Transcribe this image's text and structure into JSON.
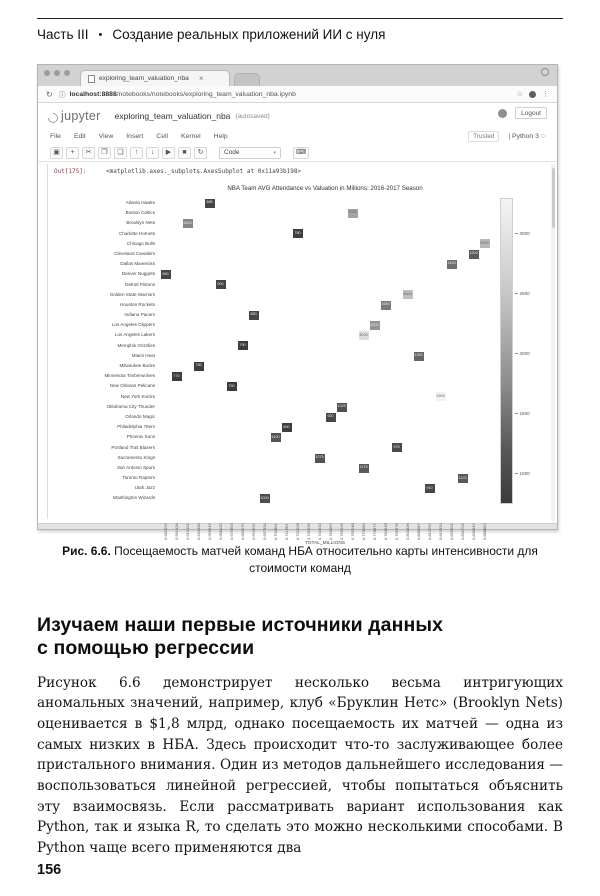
{
  "running_head": {
    "part": "Часть III",
    "bullet": "•",
    "title": "Создание реальных приложений ИИ с нуля"
  },
  "browser": {
    "tab_title": "exploring_team_valuation_nba",
    "tab_close": "×",
    "reload_icon": "↻",
    "info_icon": "ⓘ",
    "url_host": "localhost:8888",
    "url_path": "/notebooks/notebooks/exploring_team_valuation_nba.ipynb",
    "star_icon": "☆",
    "menu_icon": "⋮"
  },
  "jupyter": {
    "logo_word": "jupyter",
    "notebook_title": "exploring_team_valuation_nba",
    "autosave_status": "(autosaved)",
    "logout_label": "Logout",
    "menu_items": [
      "File",
      "Edit",
      "View",
      "Insert",
      "Cell",
      "Kernel",
      "Help"
    ],
    "trusted_label": "Trusted",
    "kernel_label": "| Python 3",
    "kernel_idle_icon": "○",
    "toolbar_icons": [
      {
        "name": "save-icon",
        "glyph": "▣"
      },
      {
        "name": "add-cell-icon",
        "glyph": "+"
      },
      {
        "name": "cut-cell-icon",
        "glyph": "✂"
      },
      {
        "name": "copy-cell-icon",
        "glyph": "❐"
      },
      {
        "name": "paste-cell-icon",
        "glyph": "❏"
      },
      {
        "name": "move-up-icon",
        "glyph": "↑"
      },
      {
        "name": "move-down-icon",
        "glyph": "↓"
      },
      {
        "name": "run-cell-icon",
        "glyph": "▶"
      },
      {
        "name": "stop-kernel-icon",
        "glyph": "■"
      },
      {
        "name": "restart-kernel-icon",
        "glyph": "↻"
      }
    ],
    "cell_type_selected": "Code",
    "select_caret": "▾",
    "keyboard_icon": "⌨",
    "output_prompt": "Out[175]:",
    "output_repr": "<matplotlib.axes._subplots.AxesSubplot at 0x11a93b198>"
  },
  "chart_data": {
    "type": "heatmap",
    "title": "NBA Team AVG Attendance vs Valuation in Millions:  2016-2017 Season",
    "xlabel": "TOTAL_MILLIONS",
    "legend_position": "right-colorbar",
    "grid": false,
    "x_ticks": [
      "0.582029",
      "0.591428",
      "0.612101",
      "0.644400",
      "0.656916",
      "0.668132",
      "0.675893",
      "0.683270",
      "0.692632",
      "0.697934",
      "0.703861",
      "0.711661",
      "0.721928",
      "0.735335",
      "0.741632",
      "0.750362",
      "0.756126",
      "0.762248",
      "0.770580",
      "0.778877",
      "0.784618",
      "0.796376",
      "0.803436",
      "0.808087",
      "0.812292",
      "0.815320",
      "0.825901",
      "0.831702",
      "0.843042",
      "0.888882"
    ],
    "teams": [
      {
        "name": "Atlanta Hawks",
        "col": 4,
        "value": 885
      },
      {
        "name": "Boston Celtics",
        "col": 17,
        "value": 2200
      },
      {
        "name": "Brooklyn Nets",
        "col": 2,
        "value": 1800
      },
      {
        "name": "Charlotte Hornets",
        "col": 12,
        "value": 780
      },
      {
        "name": "Chicago Bulls",
        "col": 29,
        "value": 2500
      },
      {
        "name": "Cleveland Cavaliers",
        "col": 28,
        "value": 1200
      },
      {
        "name": "Dallas Mavericks",
        "col": 26,
        "value": 1450
      },
      {
        "name": "Denver Nuggets",
        "col": 0,
        "value": 890
      },
      {
        "name": "Detroit Pistons",
        "col": 5,
        "value": 900
      },
      {
        "name": "Golden State Warriors",
        "col": 22,
        "value": 2600
      },
      {
        "name": "Houston Rockets",
        "col": 20,
        "value": 1650
      },
      {
        "name": "Indiana Pacers",
        "col": 8,
        "value": 880
      },
      {
        "name": "Los Angeles Clippers",
        "col": 19,
        "value": 2000
      },
      {
        "name": "Los Angeles Lakers",
        "col": 18,
        "value": 3000
      },
      {
        "name": "Memphis Grizzlies",
        "col": 7,
        "value": 790
      },
      {
        "name": "Miami Heat",
        "col": 23,
        "value": 1350
      },
      {
        "name": "Milwaukee Bucks",
        "col": 3,
        "value": 785
      },
      {
        "name": "Minnesota Timberwolves",
        "col": 1,
        "value": 770
      },
      {
        "name": "New Orleans Pelicans",
        "col": 6,
        "value": 750
      },
      {
        "name": "New York Knicks",
        "col": 25,
        "value": 3300
      },
      {
        "name": "Oklahoma City Thunder",
        "col": 16,
        "value": 1025
      },
      {
        "name": "Orlando Magic",
        "col": 15,
        "value": 920
      },
      {
        "name": "Philadelphia 76ers",
        "col": 11,
        "value": 800
      },
      {
        "name": "Phoenix Suns",
        "col": 10,
        "value": 1100
      },
      {
        "name": "Portland Trail Blazers",
        "col": 21,
        "value": 975
      },
      {
        "name": "Sacramento Kings",
        "col": 14,
        "value": 1075
      },
      {
        "name": "San Antonio Spurs",
        "col": 18,
        "value": 1175
      },
      {
        "name": "Toronto Raptors",
        "col": 27,
        "value": 1125
      },
      {
        "name": "Utah Jazz",
        "col": 24,
        "value": 910
      },
      {
        "name": "Washington Wizards",
        "col": 9,
        "value": 1000
      }
    ],
    "colorbar": {
      "ticks": [
        3000,
        2500,
        2000,
        1500,
        1000
      ],
      "vmin": 750,
      "vmax": 3300
    }
  },
  "caption": {
    "label": "Рис. 6.6.",
    "text": " Посещаемость матчей команд НБА относительно карты интенсивности для стоимости команд"
  },
  "section": {
    "heading": "Изучаем наши первые источники данных с помощью регрессии"
  },
  "body": {
    "paragraph": "Рисунок 6.6 демонстрирует несколько весьма интригующих аномальных значений, например, клуб «Бруклин Нетс» (Brooklyn Nets) оценивается в $1,8 млрд, однако посещаемость их матчей — одна из самых низких в НБА. Здесь происходит что-то заслуживающее более пристального внимания. Один из методов дальнейшего исследования — воспользоваться линейной регрессией, чтобы попытаться объяснить эту взаимосвязь. Если рассматривать вариант использования как Python, так и языка R, то сделать это можно несколькими способами. В Python чаще всего применяются два"
  },
  "page_number": "156"
}
